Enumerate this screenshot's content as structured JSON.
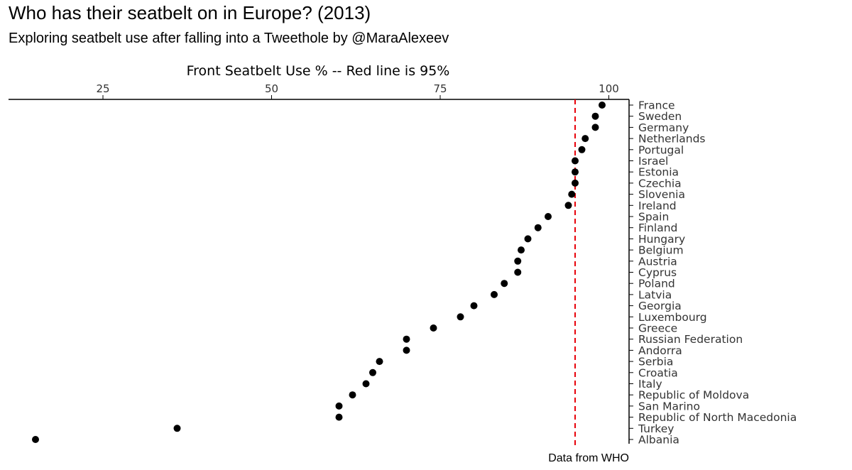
{
  "title": "Who has their seatbelt on in Europe? (2013)",
  "subtitle": "Exploring seatbelt use after falling into a Tweethole by @MaraAlexeev",
  "caption": "Data from WHO",
  "chart_data": {
    "type": "scatter",
    "title": "",
    "xlabel": "Front Seatbelt Use % -- Red line is 95%",
    "ylabel": "",
    "xlim": [
      11,
      103
    ],
    "x_ticks": [
      25,
      50,
      75,
      100
    ],
    "x_axis_position": "top",
    "y_axis_position": "right",
    "grid": false,
    "legend": "none",
    "reference_line": {
      "value": 95,
      "style": "dashed",
      "color": "#e8000b"
    },
    "point_color": "#000000",
    "categories": [
      "France",
      "Sweden",
      "Germany",
      "Netherlands",
      "Portugal",
      "Israel",
      "Estonia",
      "Czechia",
      "Slovenia",
      "Ireland",
      "Spain",
      "Finland",
      "Hungary",
      "Belgium",
      "Austria",
      "Cyprus",
      "Poland",
      "Latvia",
      "Georgia",
      "Luxembourg",
      "Greece",
      "Russian Federation",
      "Andorra",
      "Serbia",
      "Croatia",
      "Italy",
      "Republic of Moldova",
      "San Marino",
      "Republic of North Macedonia",
      "Turkey",
      "Albania"
    ],
    "values": [
      99,
      98,
      98,
      96.5,
      96,
      95,
      95,
      95,
      94.5,
      94,
      91,
      89.5,
      88,
      87,
      86.5,
      86.5,
      84.5,
      83,
      80,
      78,
      74,
      70,
      70,
      66,
      65,
      64,
      62,
      60,
      60,
      36,
      15
    ]
  }
}
